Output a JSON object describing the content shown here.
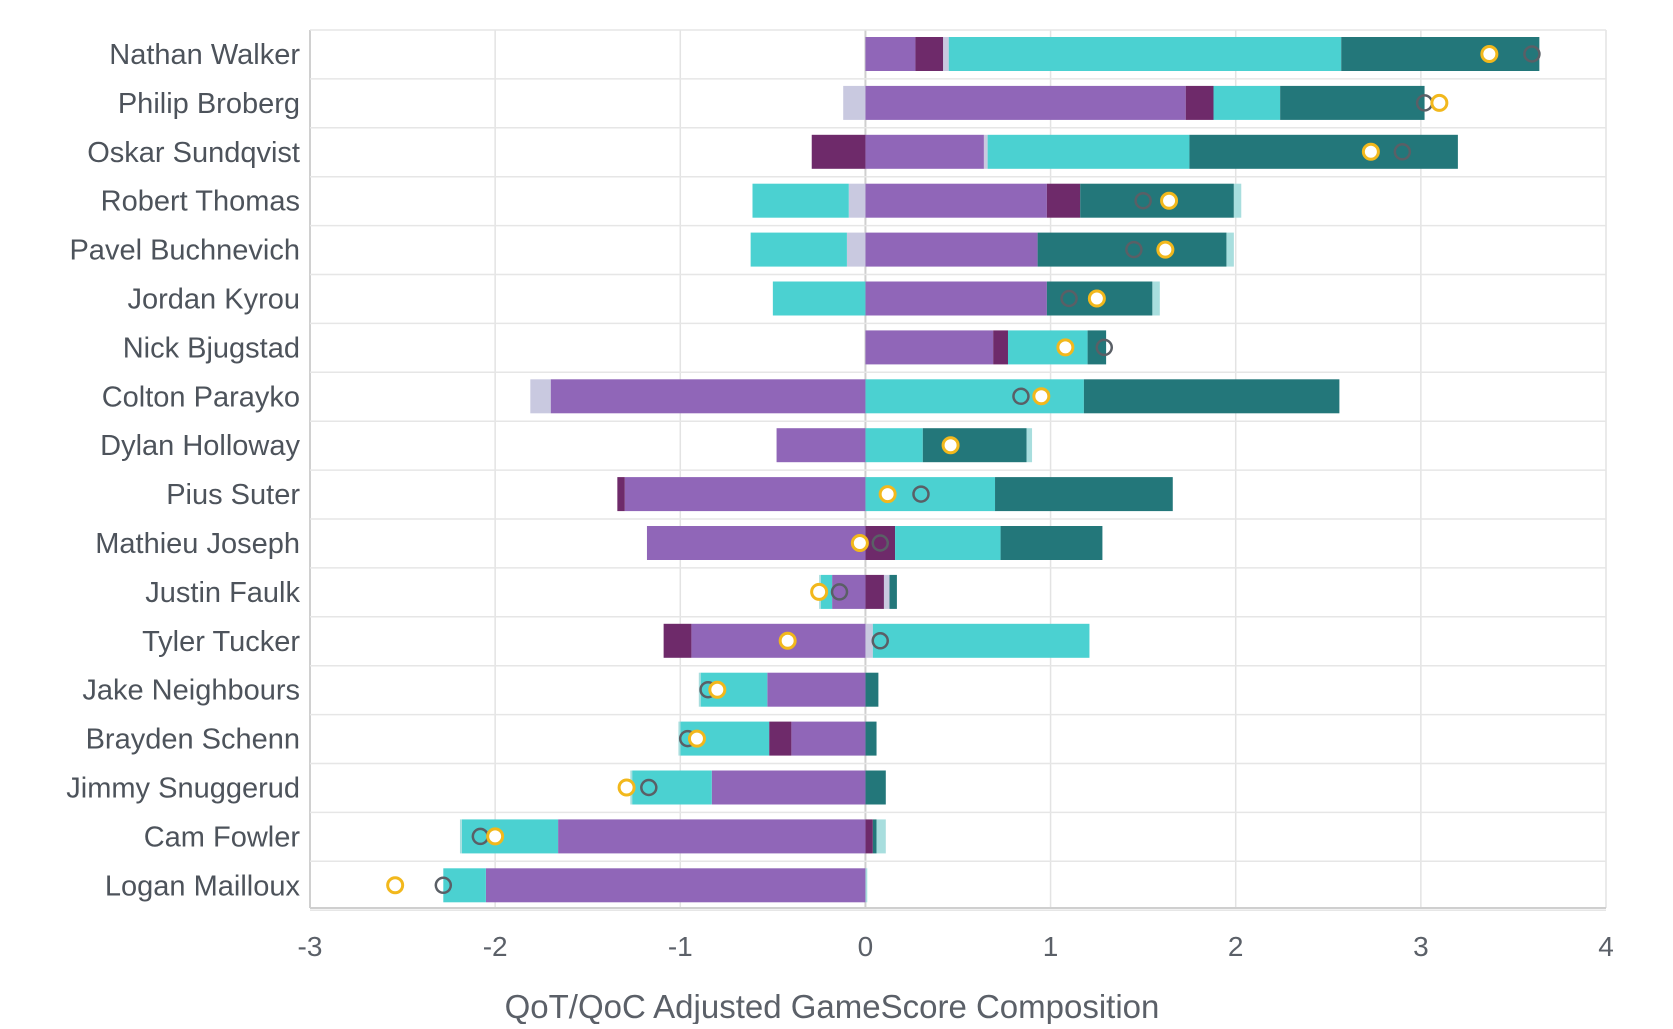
{
  "chart_data": {
    "type": "bar",
    "orientation": "horizontal",
    "stacked": "diverging",
    "title": "",
    "xlabel": "QoT/QoC Adjusted GameScore Composition",
    "ylabel": "",
    "xlim": [
      -3,
      4
    ],
    "xticks": [
      -3,
      -2,
      -1,
      0,
      1,
      2,
      3,
      4
    ],
    "xtick_labels": [
      "-3",
      "-2",
      "-1",
      "0",
      "1",
      "2",
      "3",
      "4"
    ],
    "grid": true,
    "legend": "none",
    "colors": {
      "purple": "#9066b8",
      "plum": "#6e2a6a",
      "lavender": "#c9c9e0",
      "cyan": "#4bd1d1",
      "teal": "#23777a",
      "paleteal": "#a8dede",
      "marker_gold": "#f2b81c",
      "marker_gray": "#5a5f66"
    },
    "categories": [
      "Nathan Walker",
      "Philip Broberg",
      "Oskar Sundqvist",
      "Robert Thomas",
      "Pavel Buchnevich",
      "Jordan Kyrou",
      "Nick Bjugstad",
      "Colton Parayko",
      "Dylan Holloway",
      "Pius Suter",
      "Mathieu Joseph",
      "Justin Faulk",
      "Tyler Tucker",
      "Jake Neighbours",
      "Brayden Schenn",
      "Jimmy Snuggerud",
      "Cam Fowler",
      "Logan Mailloux"
    ],
    "rows": [
      {
        "player": "Nathan Walker",
        "negative": [],
        "positive": [
          [
            "purple",
            0.27
          ],
          [
            "plum",
            0.15
          ],
          [
            "lavender",
            0.03
          ],
          [
            "cyan",
            2.12
          ],
          [
            "teal",
            1.07
          ]
        ],
        "gold": 3.37,
        "gray": 3.6
      },
      {
        "player": "Philip Broberg",
        "negative": [
          [
            "lavender",
            0.12
          ]
        ],
        "positive": [
          [
            "purple",
            1.73
          ],
          [
            "plum",
            0.15
          ],
          [
            "cyan",
            0.36
          ],
          [
            "teal",
            0.78
          ]
        ],
        "gold": 3.1,
        "gray": 3.02
      },
      {
        "player": "Oskar Sundqvist",
        "negative": [
          [
            "plum",
            0.29
          ]
        ],
        "positive": [
          [
            "purple",
            0.64
          ],
          [
            "lavender",
            0.02
          ],
          [
            "cyan",
            1.09
          ],
          [
            "teal",
            1.45
          ]
        ],
        "gold": 2.73,
        "gray": 2.9
      },
      {
        "player": "Robert Thomas",
        "negative": [
          [
            "lavender",
            0.09
          ],
          [
            "cyan",
            0.52
          ]
        ],
        "positive": [
          [
            "purple",
            0.98
          ],
          [
            "plum",
            0.18
          ],
          [
            "teal",
            0.83
          ],
          [
            "paleteal",
            0.04
          ]
        ],
        "gold": 1.64,
        "gray": 1.5
      },
      {
        "player": "Pavel Buchnevich",
        "negative": [
          [
            "lavender",
            0.1
          ],
          [
            "cyan",
            0.52
          ]
        ],
        "positive": [
          [
            "purple",
            0.93
          ],
          [
            "teal",
            1.02
          ],
          [
            "paleteal",
            0.04
          ]
        ],
        "gold": 1.62,
        "gray": 1.45
      },
      {
        "player": "Jordan Kyrou",
        "negative": [
          [
            "cyan",
            0.5
          ]
        ],
        "positive": [
          [
            "purple",
            0.98
          ],
          [
            "teal",
            0.57
          ],
          [
            "paleteal",
            0.04
          ]
        ],
        "gold": 1.25,
        "gray": 1.1
      },
      {
        "player": "Nick Bjugstad",
        "negative": [],
        "positive": [
          [
            "purple",
            0.69
          ],
          [
            "plum",
            0.08
          ],
          [
            "cyan",
            0.43
          ],
          [
            "teal",
            0.1
          ]
        ],
        "gold": 1.08,
        "gray": 1.29
      },
      {
        "player": "Colton Parayko",
        "negative": [
          [
            "purple",
            1.7
          ],
          [
            "lavender",
            0.11
          ]
        ],
        "positive": [
          [
            "cyan",
            1.18
          ],
          [
            "teal",
            1.38
          ]
        ],
        "gold": 0.95,
        "gray": 0.84
      },
      {
        "player": "Dylan Holloway",
        "negative": [
          [
            "purple",
            0.48
          ]
        ],
        "positive": [
          [
            "cyan",
            0.31
          ],
          [
            "teal",
            0.56
          ],
          [
            "paleteal",
            0.03
          ]
        ],
        "gold": 0.46,
        "gray": 0.46
      },
      {
        "player": "Pius Suter",
        "negative": [
          [
            "purple",
            1.3
          ],
          [
            "plum",
            0.04
          ]
        ],
        "positive": [
          [
            "cyan",
            0.7
          ],
          [
            "teal",
            0.96
          ]
        ],
        "gold": 0.12,
        "gray": 0.3
      },
      {
        "player": "Mathieu Joseph",
        "negative": [
          [
            "purple",
            1.18
          ]
        ],
        "positive": [
          [
            "plum",
            0.16
          ],
          [
            "cyan",
            0.57
          ],
          [
            "teal",
            0.55
          ]
        ],
        "gold": -0.03,
        "gray": 0.08
      },
      {
        "player": "Justin Faulk",
        "negative": [
          [
            "purple",
            0.18
          ],
          [
            "cyan",
            0.06
          ],
          [
            "paleteal",
            0.01
          ]
        ],
        "positive": [
          [
            "plum",
            0.1
          ],
          [
            "lavender",
            0.03
          ],
          [
            "teal",
            0.04
          ]
        ],
        "gold": -0.25,
        "gray": -0.14
      },
      {
        "player": "Tyler Tucker",
        "negative": [
          [
            "purple",
            0.94
          ],
          [
            "plum",
            0.15
          ]
        ],
        "positive": [
          [
            "lavender",
            0.04
          ],
          [
            "cyan",
            1.17
          ]
        ],
        "gold": -0.42,
        "gray": 0.08
      },
      {
        "player": "Jake Neighbours",
        "negative": [
          [
            "purple",
            0.53
          ],
          [
            "cyan",
            0.36
          ],
          [
            "paleteal",
            0.01
          ]
        ],
        "positive": [
          [
            "teal",
            0.07
          ]
        ],
        "gold": -0.8,
        "gray": -0.85
      },
      {
        "player": "Brayden Schenn",
        "negative": [
          [
            "purple",
            0.4
          ],
          [
            "plum",
            0.12
          ],
          [
            "cyan",
            0.48
          ],
          [
            "paleteal",
            0.01
          ]
        ],
        "positive": [
          [
            "teal",
            0.06
          ]
        ],
        "gold": -0.91,
        "gray": -0.96
      },
      {
        "player": "Jimmy Snuggerud",
        "negative": [
          [
            "purple",
            0.83
          ],
          [
            "cyan",
            0.43
          ],
          [
            "paleteal",
            0.01
          ]
        ],
        "positive": [
          [
            "teal",
            0.11
          ]
        ],
        "gold": -1.29,
        "gray": -1.17
      },
      {
        "player": "Cam Fowler",
        "negative": [
          [
            "purple",
            1.66
          ],
          [
            "cyan",
            0.52
          ],
          [
            "paleteal",
            0.01
          ]
        ],
        "positive": [
          [
            "plum",
            0.04
          ],
          [
            "teal",
            0.02
          ],
          [
            "paleteal",
            0.05
          ]
        ],
        "gold": -2.0,
        "gray": -2.08
      },
      {
        "player": "Logan Mailloux",
        "negative": [
          [
            "purple",
            2.05
          ],
          [
            "cyan",
            0.23
          ]
        ],
        "positive": [
          [
            "paleteal",
            0.01
          ]
        ],
        "gold": -2.54,
        "gray": -2.28
      }
    ]
  }
}
